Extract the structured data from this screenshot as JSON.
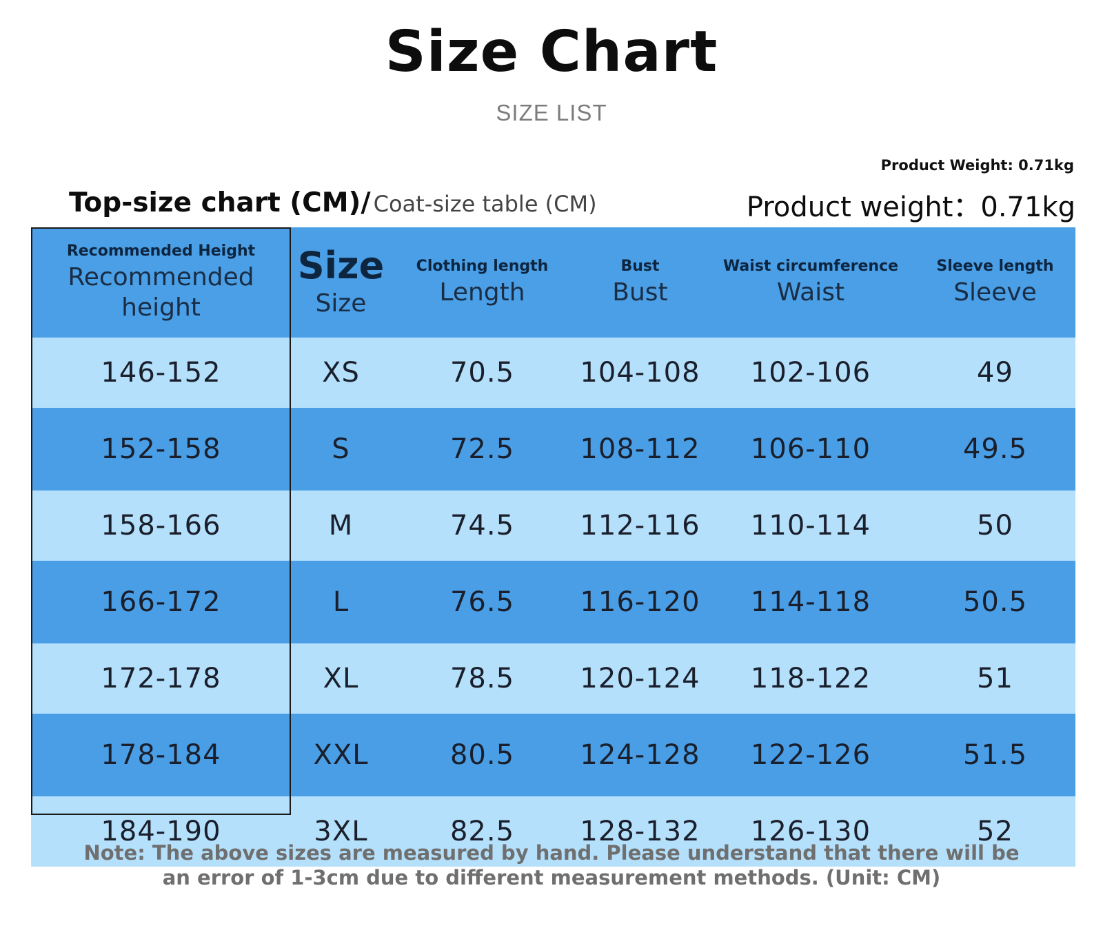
{
  "header": {
    "title": "Size Chart",
    "subtitle": "SIZE LIST"
  },
  "weight": {
    "small": "Product Weight: 0.71kg",
    "large": "Product weight：0.71kg"
  },
  "table_caption": {
    "main": "Top-size chart (CM)/",
    "alt": "Coat-size table (CM)"
  },
  "table": {
    "columns": [
      {
        "en": "Recommended Height",
        "sub": "Recommended height"
      },
      {
        "en": "Size",
        "sub": "Size"
      },
      {
        "en": "Clothing length",
        "sub": "Length"
      },
      {
        "en": "Bust",
        "sub": "Bust"
      },
      {
        "en": "Waist circumference",
        "sub": "Waist"
      },
      {
        "en": "Sleeve length",
        "sub": "Sleeve"
      }
    ],
    "rows": [
      {
        "height": "146-152",
        "size": "XS",
        "length": "70.5",
        "bust": "104-108",
        "waist": "102-106",
        "sleeve": "49"
      },
      {
        "height": "152-158",
        "size": "S",
        "length": "72.5",
        "bust": "108-112",
        "waist": "106-110",
        "sleeve": "49.5"
      },
      {
        "height": "158-166",
        "size": "M",
        "length": "74.5",
        "bust": "112-116",
        "waist": "110-114",
        "sleeve": "50"
      },
      {
        "height": "166-172",
        "size": "L",
        "length": "76.5",
        "bust": "116-120",
        "waist": "114-118",
        "sleeve": "50.5"
      },
      {
        "height": "172-178",
        "size": "XL",
        "length": "78.5",
        "bust": "120-124",
        "waist": "118-122",
        "sleeve": "51"
      },
      {
        "height": "178-184",
        "size": "XXL",
        "length": "80.5",
        "bust": "124-128",
        "waist": "122-126",
        "sleeve": "51.5"
      },
      {
        "height": "184-190",
        "size": "3XL",
        "length": "82.5",
        "bust": "128-132",
        "waist": "126-130",
        "sleeve": "52"
      }
    ]
  },
  "note": {
    "text": "Note: The above sizes are measured by hand. Please understand that there will be an error of 1-3cm due to different measurement methods. (Unit: CM)"
  },
  "colors": {
    "header_bg": "#4a9fe6",
    "row_light": "#b4e0fc",
    "row_dark": "#499ee6"
  }
}
